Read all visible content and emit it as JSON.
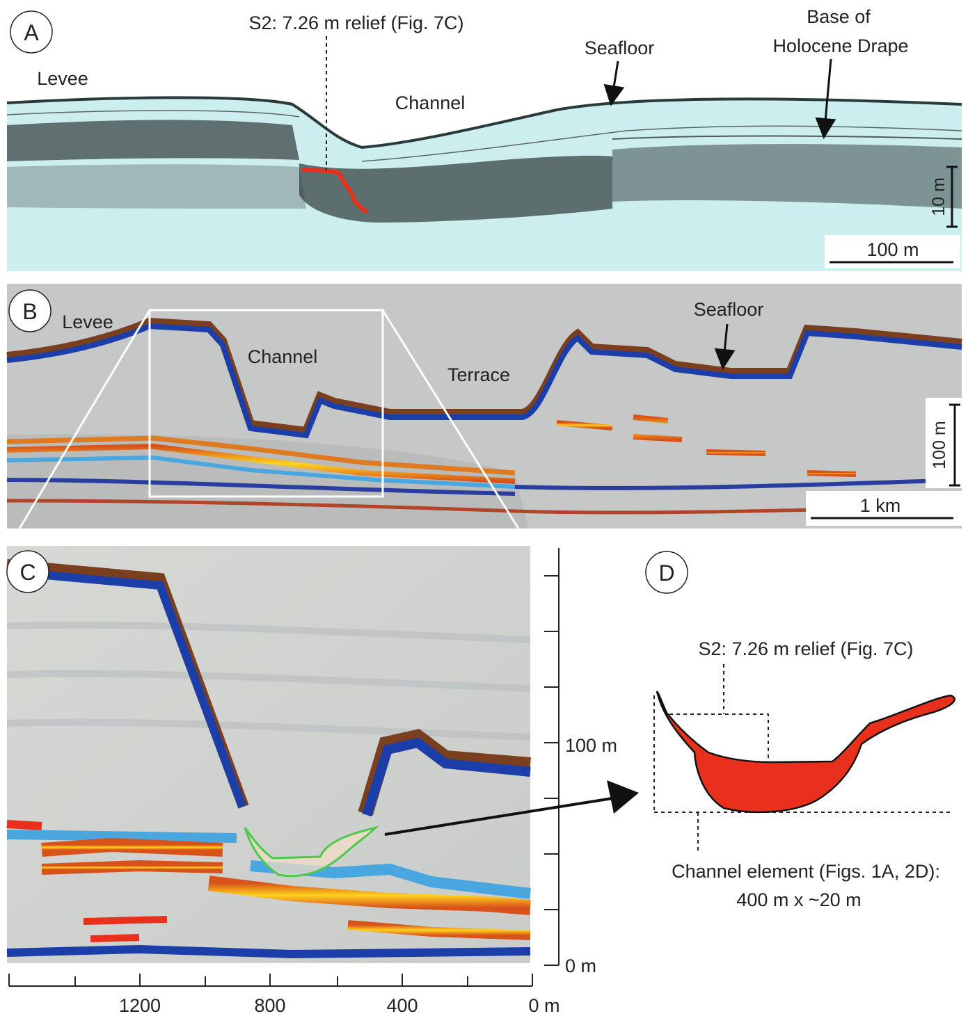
{
  "panel_a": {
    "letter": "A",
    "top_label": "S2: 7.26 m relief (Fig. 7C)",
    "levee": "Levee",
    "channel": "Channel",
    "seafloor": "Seafloor",
    "base_line1": "Base of",
    "base_line2": "Holocene Drape",
    "vscale": "10 m",
    "hscale": "100 m"
  },
  "panel_b": {
    "letter": "B",
    "levee": "Levee",
    "channel": "Channel",
    "terrace": "Terrace",
    "seafloor": "Seafloor",
    "vscale": "100 m",
    "hscale": "1 km"
  },
  "panel_c": {
    "letter": "C",
    "y_labels": [
      "100 m",
      "0 m"
    ],
    "x_labels": [
      "1200",
      "800",
      "400",
      "0 m"
    ]
  },
  "panel_d": {
    "letter": "D",
    "relief_label": "S2: 7.26 m relief (Fig. 7C)",
    "element_line1": "Channel element (Figs. 1A, 2D):",
    "element_line2": "400 m x ~20 m"
  },
  "colors": {
    "red_fill": "#e8301c",
    "blue": "#1c3ea8",
    "cyan_bg": "#c9ecec",
    "grey_bg": "#c5c8c7"
  }
}
